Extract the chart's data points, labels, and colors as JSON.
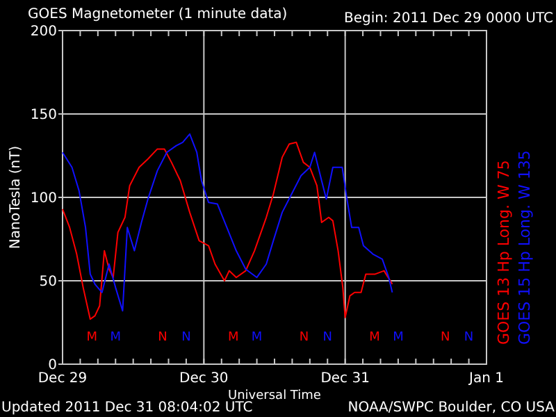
{
  "chart_data": {
    "type": "line",
    "title": "GOES Magnetometer (1 minute data)",
    "subtitle": "Begin:  2011 Dec 29 0000 UTC",
    "xlabel": "Universal Time",
    "ylabel": "NanoTesla (nT)",
    "xlim": [
      "2011-12-29T00:00",
      "2012-01-01T00:00"
    ],
    "xticks": [
      {
        "value": "2011-12-29T00:00",
        "label": "Dec 29"
      },
      {
        "value": "2011-12-29T03:00",
        "label": null
      },
      {
        "value": "2011-12-29T06:00",
        "label": null
      },
      {
        "value": "2011-12-29T09:00",
        "label": null
      },
      {
        "value": "2011-12-29T12:00",
        "label": null
      },
      {
        "value": "2011-12-29T15:00",
        "label": null
      },
      {
        "value": "2011-12-29T18:00",
        "label": null
      },
      {
        "value": "2011-12-29T21:00",
        "label": null
      },
      {
        "value": "2011-12-30T00:00",
        "label": "Dec 30"
      },
      {
        "value": "2011-12-30T03:00",
        "label": null
      },
      {
        "value": "2011-12-30T06:00",
        "label": null
      },
      {
        "value": "2011-12-30T09:00",
        "label": null
      },
      {
        "value": "2011-12-30T12:00",
        "label": null
      },
      {
        "value": "2011-12-30T15:00",
        "label": null
      },
      {
        "value": "2011-12-30T18:00",
        "label": null
      },
      {
        "value": "2011-12-30T21:00",
        "label": null
      },
      {
        "value": "2011-12-31T00:00",
        "label": "Dec 31"
      },
      {
        "value": "2011-12-31T03:00",
        "label": null
      },
      {
        "value": "2011-12-31T06:00",
        "label": null
      },
      {
        "value": "2011-12-31T09:00",
        "label": null
      },
      {
        "value": "2011-12-31T12:00",
        "label": null
      },
      {
        "value": "2011-12-31T15:00",
        "label": null
      },
      {
        "value": "2011-12-31T18:00",
        "label": null
      },
      {
        "value": "2011-12-31T21:00",
        "label": null
      },
      {
        "value": "2012-01-01T00:00",
        "label": "Jan 1"
      }
    ],
    "ylim": [
      0,
      200
    ],
    "yticks": [
      0,
      50,
      100,
      150,
      200
    ],
    "grid": true,
    "legend": "right",
    "marker": "none",
    "line_style": "solid",
    "series": [
      {
        "name": "GOES 13 Hp  Long. W 75",
        "color": "#ff0000",
        "x": [
          "2011-12-29T00:00",
          "2011-12-29T01:12",
          "2011-12-29T02:24",
          "2011-12-29T03:30",
          "2011-12-29T04:42",
          "2011-12-29T05:30",
          "2011-12-29T06:18",
          "2011-12-29T07:06",
          "2011-12-29T07:54",
          "2011-12-29T08:36",
          "2011-12-29T09:24",
          "2011-12-29T10:36",
          "2011-12-29T11:24",
          "2011-12-29T13:00",
          "2011-12-29T14:30",
          "2011-12-29T16:06",
          "2011-12-29T17:18",
          "2011-12-29T18:30",
          "2011-12-29T20:00",
          "2011-12-29T21:36",
          "2011-12-29T23:12",
          "2011-12-30T00:48",
          "2011-12-30T01:54",
          "2011-12-30T03:30",
          "2011-12-30T04:18",
          "2011-12-30T05:30",
          "2011-12-30T07:06",
          "2011-12-30T08:36",
          "2011-12-30T10:36",
          "2011-12-30T11:48",
          "2011-12-30T13:18",
          "2011-12-30T14:30",
          "2011-12-30T15:42",
          "2011-12-30T16:54",
          "2011-12-30T18:00",
          "2011-12-30T19:12",
          "2011-12-30T20:00",
          "2011-12-30T21:12",
          "2011-12-30T21:54",
          "2011-12-30T22:48",
          "2011-12-30T23:36",
          "2011-12-31T00:00",
          "2011-12-31T00:48",
          "2011-12-31T01:36",
          "2011-12-31T02:42",
          "2011-12-31T03:30",
          "2011-12-31T05:06",
          "2011-12-31T06:36",
          "2011-12-31T08:00"
        ],
        "values": [
          93,
          82,
          66,
          46,
          27,
          29,
          35,
          68,
          57,
          52,
          79,
          88,
          107,
          118,
          123,
          129,
          129,
          121,
          110,
          91,
          74,
          71,
          60,
          50,
          56,
          52,
          56,
          68,
          88,
          102,
          124,
          132,
          133,
          121,
          118,
          107,
          85,
          88,
          86,
          68,
          46,
          28,
          41,
          43,
          43,
          54,
          54,
          56,
          48
        ]
      },
      {
        "name": "GOES 15 Hp  Long. W 135",
        "color": "#1010ff",
        "x": [
          "2011-12-29T00:00",
          "2011-12-29T01:36",
          "2011-12-29T02:48",
          "2011-12-29T03:54",
          "2011-12-29T04:42",
          "2011-12-29T05:30",
          "2011-12-29T06:42",
          "2011-12-29T07:54",
          "2011-12-29T09:00",
          "2011-12-29T10:12",
          "2011-12-29T11:00",
          "2011-12-29T12:12",
          "2011-12-29T13:24",
          "2011-12-29T14:30",
          "2011-12-29T16:06",
          "2011-12-29T17:42",
          "2011-12-29T19:18",
          "2011-12-29T20:24",
          "2011-12-29T21:36",
          "2011-12-29T22:48",
          "2011-12-29T23:36",
          "2011-12-30T00:48",
          "2011-12-30T02:18",
          "2011-12-30T03:54",
          "2011-12-30T05:30",
          "2011-12-30T07:06",
          "2011-12-30T09:00",
          "2011-12-30T10:36",
          "2011-12-30T11:48",
          "2011-12-30T13:18",
          "2011-12-30T14:54",
          "2011-12-30T16:30",
          "2011-12-30T18:00",
          "2011-12-30T18:48",
          "2011-12-30T20:00",
          "2011-12-30T20:48",
          "2011-12-30T21:54",
          "2011-12-30T23:30",
          "2011-12-31T00:18",
          "2011-12-31T01:06",
          "2011-12-31T02:18",
          "2011-12-31T03:06",
          "2011-12-31T04:42",
          "2011-12-31T06:18",
          "2011-12-31T07:24",
          "2011-12-31T08:00"
        ],
        "values": [
          127,
          118,
          104,
          82,
          54,
          48,
          43,
          60,
          46,
          32,
          82,
          68,
          85,
          99,
          116,
          127,
          131,
          133,
          138,
          127,
          110,
          97,
          96,
          82,
          68,
          57,
          52,
          60,
          74,
          91,
          102,
          113,
          118,
          127,
          110,
          99,
          118,
          118,
          99,
          82,
          82,
          71,
          66,
          63,
          52,
          43
        ]
      }
    ],
    "annotations": [
      "M",
      "M",
      "N",
      "N",
      "M",
      "M",
      "N",
      "N",
      "M",
      "M",
      "N",
      "N",
      "Updated 2011 Dec 31 08:04:02 UTC",
      "NOAA/SWPC Boulder, CO USA"
    ]
  }
}
